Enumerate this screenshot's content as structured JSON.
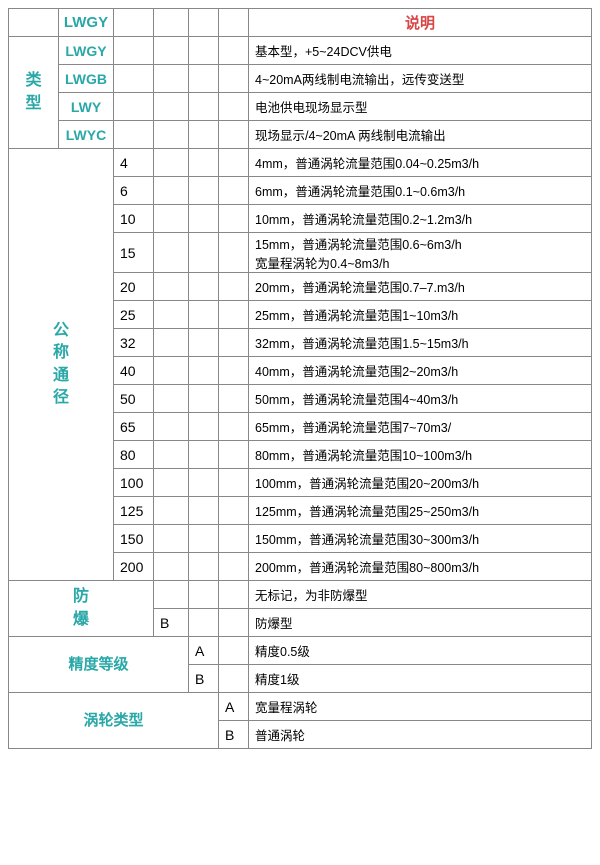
{
  "header": {
    "lwgy": "LWGY",
    "desc_title": "说明"
  },
  "type_section": {
    "label": "类\n型",
    "rows": [
      {
        "code": "LWGY",
        "desc": "基本型，+5~24DCV供电"
      },
      {
        "code": "LWGB",
        "desc": "4~20mA两线制电流输出，远传变送型"
      },
      {
        "code": "LWY",
        "desc": "电池供电现场显示型"
      },
      {
        "code": "LWYC",
        "desc": "现场显示/4~20mA 两线制电流输出"
      }
    ]
  },
  "diameter_section": {
    "label": "公\n称\n通\n径",
    "rows": [
      {
        "n": "4",
        "d": "4mm，普通涡轮流量范围0.04~0.25m3/h"
      },
      {
        "n": "6",
        "d": "6mm，普通涡轮流量范围0.1~0.6m3/h"
      },
      {
        "n": "10",
        "d": "10mm，普通涡轮流量范围0.2~1.2m3/h"
      },
      {
        "n": "15",
        "d": "15mm，普通涡轮流量范围0.6~6m3/h\n宽量程涡轮为0.4~8m3/h"
      },
      {
        "n": "20",
        "d": "20mm，普通涡轮流量范围0.7–7.m3/h"
      },
      {
        "n": "25",
        "d": "25mm，普通涡轮流量范围1~10m3/h"
      },
      {
        "n": "32",
        "d": "32mm，普通涡轮流量范围1.5~15m3/h"
      },
      {
        "n": "40",
        "d": "40mm，普通涡轮流量范围2~20m3/h"
      },
      {
        "n": "50",
        "d": "50mm，普通涡轮流量范围4~40m3/h"
      },
      {
        "n": "65",
        "d": "65mm，普通涡轮流量范围7~70m3/"
      },
      {
        "n": "80",
        "d": "80mm，普通涡轮流量范围10~100m3/h"
      },
      {
        "n": "100",
        "d": "100mm，普通涡轮流量范围20~200m3/h"
      },
      {
        "n": "125",
        "d": "125mm，普通涡轮流量范围25~250m3/h"
      },
      {
        "n": "150",
        "d": "150mm，普通涡轮流量范围30~300m3/h"
      },
      {
        "n": "200",
        "d": "200mm，普通涡轮流量范围80~800m3/h"
      }
    ]
  },
  "explosion_section": {
    "label": "防\n爆",
    "rows": [
      {
        "code": "",
        "desc": "无标记，为非防爆型"
      },
      {
        "code": "B",
        "desc": "防爆型"
      }
    ]
  },
  "precision_section": {
    "label": "精度等级",
    "rows": [
      {
        "code": "A",
        "desc": "精度0.5级"
      },
      {
        "code": "B",
        "desc": "精度1级"
      }
    ]
  },
  "turbine_section": {
    "label": "涡轮类型",
    "rows": [
      {
        "code": "A",
        "desc": "宽量程涡轮"
      },
      {
        "code": "B",
        "desc": "普通涡轮"
      }
    ]
  }
}
